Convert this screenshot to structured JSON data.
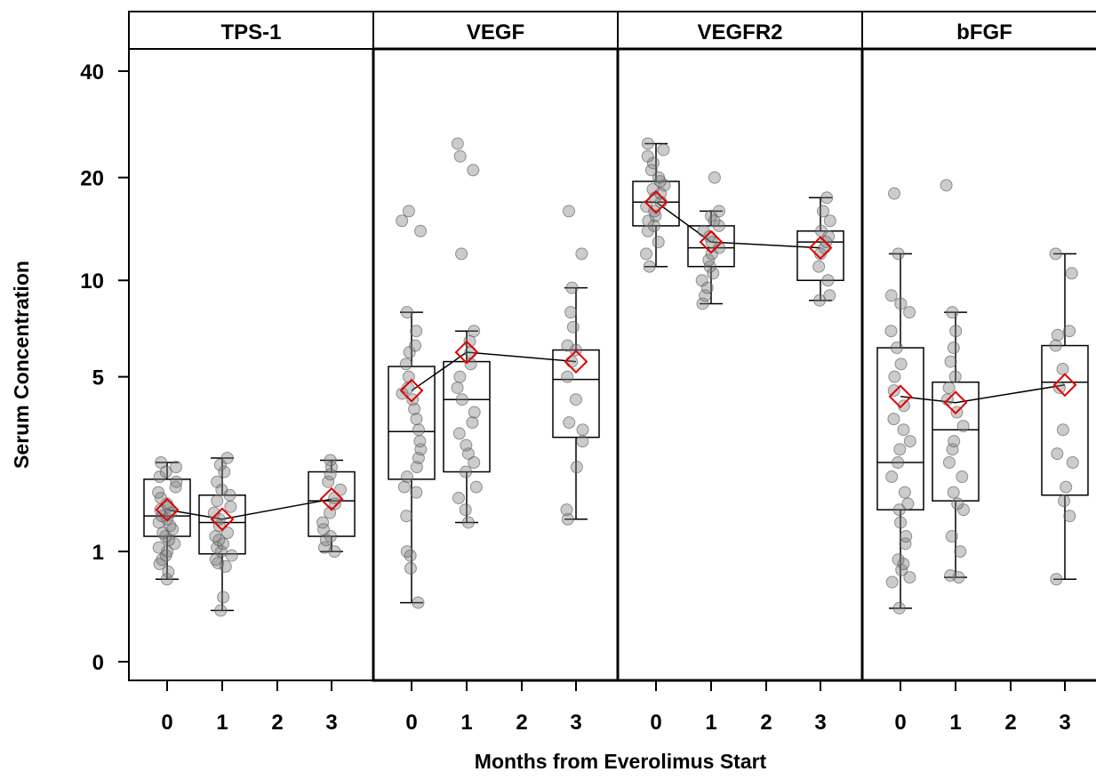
{
  "chart_data": {
    "type": "box",
    "xlabel": "Months from Everolimus Start",
    "ylabel": "Serum Concentration",
    "y_ticks": [
      0,
      1,
      5,
      10,
      20,
      40
    ],
    "y_tick_labels": [
      "0",
      "1",
      "5",
      "10",
      "20",
      "40"
    ],
    "x_ticks": [
      0,
      1,
      2,
      3
    ],
    "x_tick_labels": [
      "0",
      "1",
      "2",
      "3"
    ],
    "y_scale": "log(y+1)",
    "colors": {
      "mean_marker": "#e00000",
      "points": "#808080",
      "box": "#000000"
    },
    "panels": [
      {
        "title": "TPS-1",
        "groups": [
          {
            "month": 0,
            "whisker_low": 0.68,
            "q1": 1.2,
            "median": 1.5,
            "q3": 2.15,
            "whisker_high": 2.5,
            "mean": 1.6,
            "points": [
              0.68,
              0.76,
              0.85,
              0.9,
              0.95,
              1.0,
              1.05,
              1.1,
              1.15,
              1.2,
              1.25,
              1.3,
              1.35,
              1.4,
              1.45,
              1.5,
              1.55,
              1.6,
              1.65,
              1.7,
              1.8,
              1.9,
              2.0,
              2.1,
              2.2,
              2.3,
              2.4,
              2.5
            ]
          },
          {
            "month": 1,
            "whisker_low": 0.38,
            "q1": 0.97,
            "median": 1.4,
            "q3": 1.85,
            "whisker_high": 2.6,
            "mean": 1.45,
            "points": [
              0.38,
              0.5,
              0.82,
              0.86,
              0.9,
              0.95,
              1.0,
              1.05,
              1.1,
              1.15,
              1.2,
              1.25,
              1.35,
              1.45,
              1.55,
              1.65,
              1.75,
              1.85,
              1.95,
              2.1,
              2.3,
              2.45,
              2.6
            ]
          },
          {
            "month": 3,
            "whisker_low": 1.0,
            "q1": 1.2,
            "median": 1.75,
            "q3": 2.3,
            "whisker_high": 2.55,
            "mean": 1.78,
            "points": [
              1.0,
              1.05,
              1.15,
              1.2,
              1.3,
              1.4,
              1.55,
              1.7,
              1.8,
              1.95,
              2.1,
              2.25,
              2.4,
              2.55
            ]
          }
        ]
      },
      {
        "title": "VEGF",
        "groups": [
          {
            "month": 0,
            "whisker_low": 0.45,
            "q1": 2.15,
            "median": 3.25,
            "q3": 5.4,
            "whisker_high": 8.0,
            "mean": 4.5,
            "points": [
              0.45,
              0.8,
              0.95,
              1.0,
              1.5,
              1.9,
              2.0,
              2.2,
              2.4,
              2.6,
              2.8,
              3.0,
              3.3,
              3.6,
              3.9,
              4.2,
              4.4,
              4.6,
              5.0,
              5.5,
              6.0,
              6.3,
              7.0,
              8.0,
              14.0,
              15.0,
              16.0
            ]
          },
          {
            "month": 1,
            "whisker_low": 1.4,
            "q1": 2.3,
            "median": 4.2,
            "q3": 5.6,
            "whisker_high": 7.0,
            "mean": 6.0,
            "points": [
              1.4,
              1.6,
              1.8,
              2.0,
              2.3,
              2.5,
              2.7,
              2.9,
              3.2,
              3.5,
              3.8,
              4.2,
              4.6,
              5.0,
              5.5,
              6.0,
              6.5,
              7.0,
              12.0,
              21.0,
              23.0,
              25.0
            ]
          },
          {
            "month": 3,
            "whisker_low": 1.45,
            "q1": 3.1,
            "median": 4.9,
            "q3": 6.1,
            "whisker_high": 9.5,
            "mean": 5.6,
            "points": [
              1.45,
              1.6,
              2.4,
              3.0,
              3.3,
              3.5,
              4.2,
              5.0,
              5.6,
              6.1,
              6.3,
              7.2,
              8.0,
              9.5,
              12.0,
              16.0
            ]
          }
        ]
      },
      {
        "title": "VEGFR2",
        "groups": [
          {
            "month": 0,
            "whisker_low": 11.0,
            "q1": 14.5,
            "median": 17.0,
            "q3": 19.5,
            "whisker_high": 25.0,
            "mean": 17.0,
            "points": [
              11.0,
              12.0,
              13.0,
              14.0,
              14.5,
              15.0,
              15.5,
              16.0,
              16.5,
              17.0,
              17.5,
              18.0,
              18.5,
              19.0,
              19.5,
              20.0,
              21.0,
              22.0,
              23.0,
              24.0,
              25.0
            ]
          },
          {
            "month": 1,
            "whisker_low": 8.5,
            "q1": 11.0,
            "median": 12.5,
            "q3": 14.5,
            "whisker_high": 16.0,
            "mean": 13.0,
            "points": [
              8.5,
              9.0,
              9.5,
              10.0,
              10.5,
              11.0,
              11.5,
              12.0,
              12.5,
              13.0,
              13.5,
              14.0,
              14.5,
              15.0,
              15.5,
              16.0,
              20.0
            ]
          },
          {
            "month": 3,
            "whisker_low": 8.7,
            "q1": 10.0,
            "median": 13.0,
            "q3": 14.0,
            "whisker_high": 17.5,
            "mean": 12.5,
            "points": [
              8.7,
              9.0,
              10.0,
              11.0,
              12.0,
              12.5,
              13.0,
              13.5,
              14.0,
              15.0,
              16.0,
              17.5
            ]
          }
        ]
      },
      {
        "title": "bFGF",
        "groups": [
          {
            "month": 0,
            "whisker_low": 0.4,
            "q1": 1.6,
            "median": 2.5,
            "q3": 6.2,
            "whisker_high": 12.0,
            "mean": 4.3,
            "points": [
              0.4,
              0.65,
              0.7,
              0.78,
              0.85,
              0.9,
              1.1,
              1.2,
              1.4,
              1.6,
              1.7,
              1.9,
              2.2,
              2.5,
              2.8,
              3.0,
              3.3,
              3.6,
              4.0,
              4.5,
              5.0,
              5.5,
              6.2,
              7.0,
              8.0,
              8.5,
              9.0,
              12.0,
              18.0
            ]
          },
          {
            "month": 1,
            "whisker_low": 0.7,
            "q1": 1.75,
            "median": 3.3,
            "q3": 4.8,
            "whisker_high": 8.0,
            "mean": 4.1,
            "points": [
              0.7,
              0.72,
              1.0,
              1.2,
              1.6,
              1.7,
              1.9,
              2.2,
              2.5,
              2.8,
              3.0,
              3.4,
              3.8,
              4.2,
              4.6,
              5.0,
              5.6,
              6.2,
              7.0,
              8.0,
              19.0
            ]
          },
          {
            "month": 3,
            "whisker_low": 0.68,
            "q1": 1.85,
            "median": 4.8,
            "q3": 6.3,
            "whisker_high": 12.0,
            "mean": 4.7,
            "points": [
              0.68,
              1.5,
              1.75,
              2.0,
              2.5,
              2.7,
              3.3,
              4.6,
              5.3,
              6.3,
              6.8,
              7.0,
              10.5,
              12.0
            ]
          }
        ]
      }
    ]
  }
}
